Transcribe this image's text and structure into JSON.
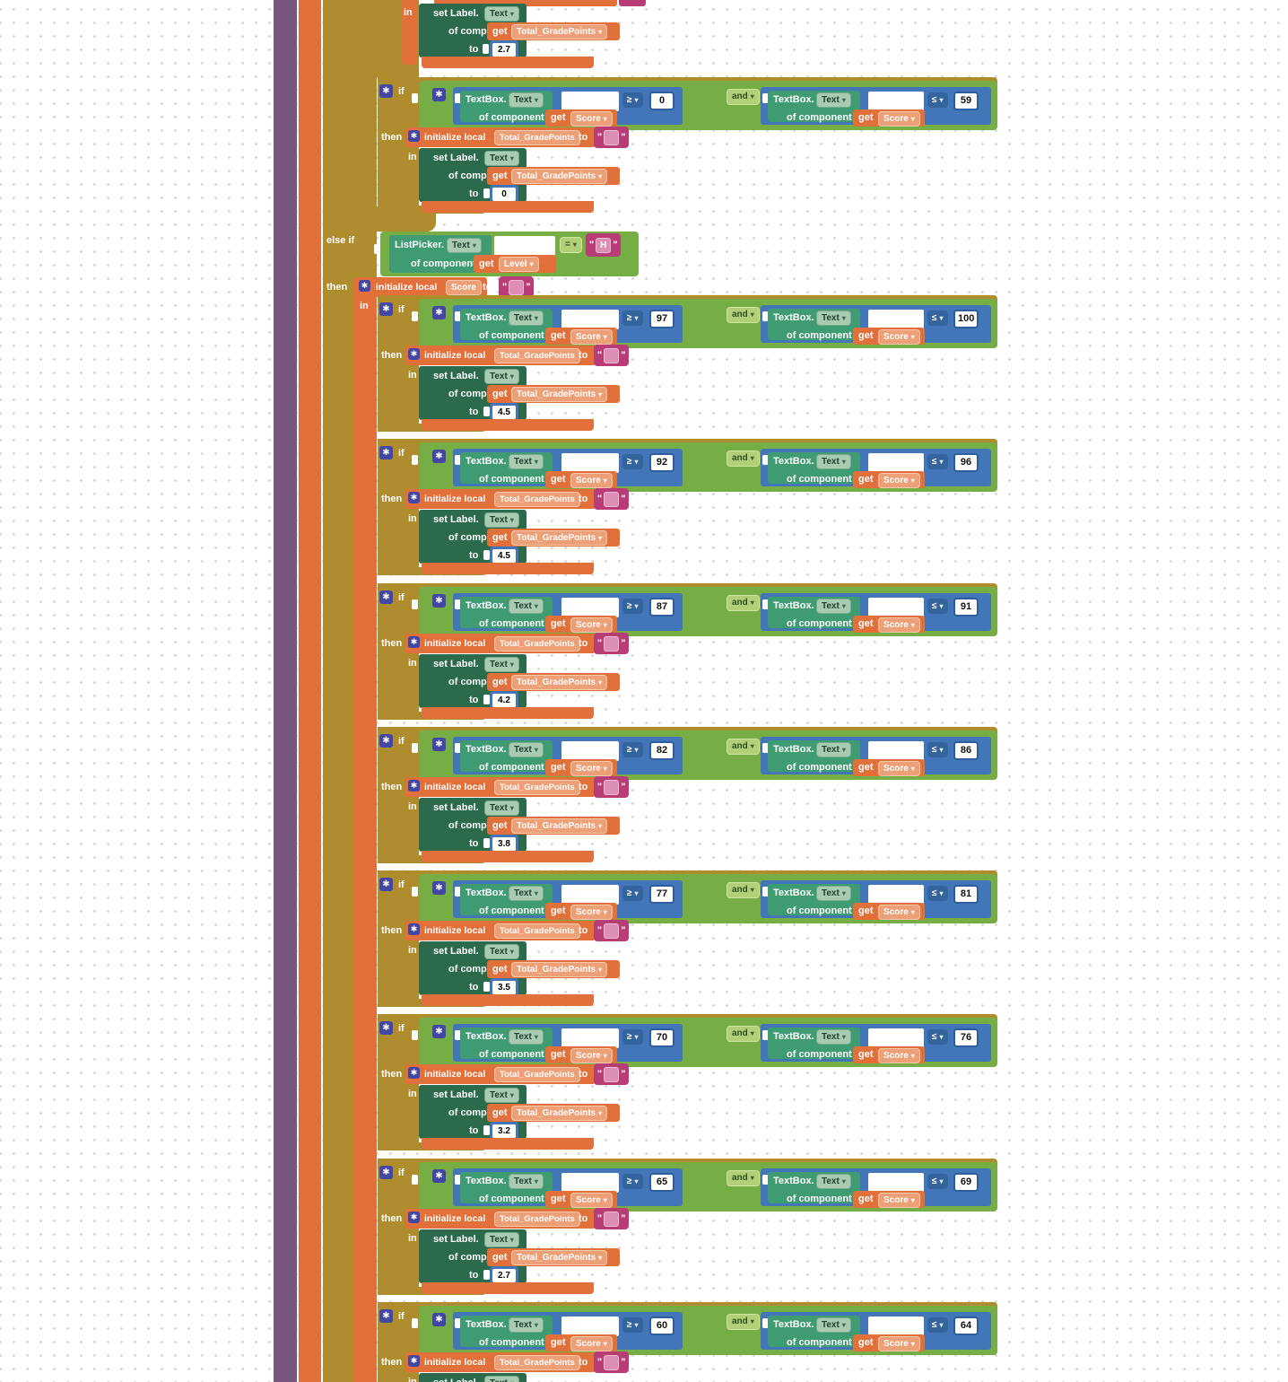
{
  "colors": {
    "workspace_dot": "#d7d7d7",
    "control_block": "#AF8D2E",
    "variable_block": "#E2703A",
    "component_set_block": "#2B6A4D",
    "component_get_block": "#3F9B71",
    "logic_block": "#77AD45",
    "math_block": "#4376B8",
    "text_block": "#B83D76",
    "procedure_wall": "#7A557F",
    "mutator_gear": "#4347A4"
  },
  "labels": {
    "if": "if",
    "then": "then",
    "else_if": "else if",
    "in": "in",
    "and": "and",
    "ge": "≥",
    "le": "≤",
    "eq": "=",
    "textbox": "TextBox.",
    "listpicker": "ListPicker.",
    "text": "Text",
    "of_component": "of component",
    "get": "get",
    "score": "Score",
    "level": "Level",
    "total_gradepoints": "Total_GradePoints",
    "set_label": "set Label.",
    "to": "to",
    "initialize_local": "initialize local",
    "quote": "\""
  },
  "top_fragment": {
    "in": "in",
    "grade_points_value": "2.7"
  },
  "elseif_section": {
    "condition_component": "ListPicker.",
    "condition_property": "Text",
    "compare_op": "=",
    "string_value": "H",
    "get_variable": "Level",
    "local_name": "Score"
  },
  "if_units": [
    {
      "ge": "0",
      "le": "59",
      "gp": "0"
    },
    {
      "ge": "97",
      "le": "100",
      "gp": "4.5"
    },
    {
      "ge": "92",
      "le": "96",
      "gp": "4.5"
    },
    {
      "ge": "87",
      "le": "91",
      "gp": "4.2"
    },
    {
      "ge": "82",
      "le": "86",
      "gp": "3.8"
    },
    {
      "ge": "77",
      "le": "81",
      "gp": "3.5"
    },
    {
      "ge": "70",
      "le": "76",
      "gp": "3.2"
    },
    {
      "ge": "65",
      "le": "69",
      "gp": "2.7"
    },
    {
      "ge": "60",
      "le": "64",
      "gp": ""
    }
  ]
}
